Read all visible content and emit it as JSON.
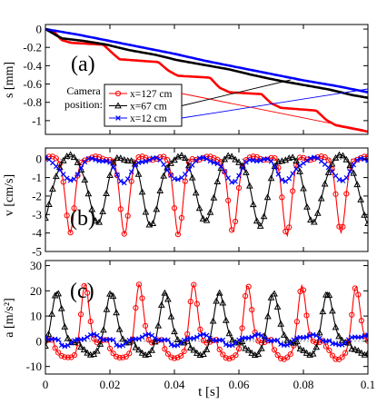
{
  "chart_data": [
    {
      "type": "line",
      "panel_label": "(a)",
      "xlabel": "",
      "ylabel": "s [mm]",
      "xlim": [
        0,
        0.1
      ],
      "ylim": [
        -1.15,
        0.05
      ],
      "x_ticks": [
        0,
        0.02,
        0.04,
        0.06,
        0.08,
        0.1
      ],
      "y_ticks": [
        0,
        -0.2,
        -0.4,
        -0.6,
        -0.8,
        -1
      ],
      "y_tick_labels": [
        "0",
        "-0.2",
        "-0.4",
        "-0.6",
        "-0.8",
        "-1"
      ],
      "legend_title": "Camera position:",
      "legend_title_lines": [
        "Camera",
        "position:"
      ],
      "series": [
        {
          "name": "x=127 cm",
          "color": "#ff0000",
          "marker": "circle",
          "x": [
            0,
            0.003,
            0.005,
            0.008,
            0.018,
            0.021,
            0.023,
            0.035,
            0.038,
            0.041,
            0.051,
            0.054,
            0.057,
            0.067,
            0.07,
            0.073,
            0.084,
            0.087,
            0.09,
            0.1
          ],
          "y": [
            0,
            -0.04,
            -0.12,
            -0.15,
            -0.17,
            -0.27,
            -0.33,
            -0.36,
            -0.45,
            -0.51,
            -0.53,
            -0.64,
            -0.69,
            -0.71,
            -0.81,
            -0.86,
            -0.89,
            -0.99,
            -1.05,
            -1.12
          ]
        },
        {
          "name": "x=67 cm",
          "color": "#000000",
          "marker": "triangle",
          "x": [
            0,
            0.002,
            0.005,
            0.012,
            0.019,
            0.026,
            0.034,
            0.041,
            0.049,
            0.057,
            0.064,
            0.072,
            0.08,
            0.088,
            0.095,
            0.1
          ],
          "y": [
            0,
            -0.04,
            -0.1,
            -0.13,
            -0.17,
            -0.23,
            -0.28,
            -0.34,
            -0.39,
            -0.44,
            -0.5,
            -0.56,
            -0.61,
            -0.66,
            -0.72,
            -0.75
          ]
        },
        {
          "name": "x=12 cm",
          "color": "#0000ff",
          "marker": "x",
          "x": [
            0,
            0.01,
            0.02,
            0.03,
            0.04,
            0.05,
            0.06,
            0.07,
            0.08,
            0.09,
            0.1
          ],
          "y": [
            0,
            -0.06,
            -0.13,
            -0.2,
            -0.27,
            -0.35,
            -0.42,
            -0.49,
            -0.56,
            -0.62,
            -0.69
          ]
        }
      ]
    },
    {
      "type": "line",
      "panel_label": "(b)",
      "xlabel": "",
      "ylabel": "v [cm/s]",
      "xlim": [
        0,
        0.1
      ],
      "ylim": [
        -5,
        0.6
      ],
      "x_ticks": [
        0,
        0.02,
        0.04,
        0.06,
        0.08,
        0.1
      ],
      "y_ticks": [
        0,
        -1,
        -2,
        -3,
        -4,
        -5
      ],
      "y_tick_labels": [
        "0",
        "-1",
        "-2",
        "-3",
        "-4",
        "-5"
      ],
      "series": [
        {
          "name": "x=127 cm",
          "color": "#ff0000",
          "marker": "circle",
          "period": 0.0168,
          "phase": 0.003,
          "peak_time": 0.0047,
          "min": -4.1,
          "base": 0.05,
          "ripple": 0.1,
          "sharp": true
        },
        {
          "name": "x=67 cm",
          "color": "#000000",
          "marker": "triangle",
          "period": 0.0168,
          "phase": 0.008,
          "peak_time": 0.008,
          "min": -3.6,
          "base": 0.1,
          "ripple": 0.15,
          "sharp": false
        },
        {
          "name": "x=12 cm",
          "color": "#0000ff",
          "marker": "x",
          "period": 0.0168,
          "phase": 0.0005,
          "peak_time": 0.007,
          "min": -1.2,
          "base": 0.0,
          "ripple": 0.1,
          "sharp": false
        }
      ]
    },
    {
      "type": "line",
      "panel_label": "(c)",
      "xlabel": "t [s]",
      "ylabel": "a [m/s²]",
      "xlim": [
        0,
        0.1
      ],
      "ylim": [
        -13,
        32
      ],
      "x_ticks": [
        0,
        0.02,
        0.04,
        0.06,
        0.08,
        0.1
      ],
      "x_tick_labels": [
        "0",
        "0.02",
        "0.04",
        "0.06",
        "0.08",
        "0.1"
      ],
      "y_ticks": [
        30,
        20,
        10,
        0,
        -10
      ],
      "y_tick_labels": [
        "30",
        "20",
        "10",
        "0",
        "-10"
      ],
      "series": [
        {
          "name": "x=127 cm",
          "color": "#ff0000",
          "marker": "circle",
          "period": 0.0168,
          "phase": 0.003,
          "peak": 24,
          "trough": -7,
          "width": 0.0012
        },
        {
          "name": "x=67 cm",
          "color": "#000000",
          "marker": "triangle",
          "period": 0.0168,
          "phase": 0.011,
          "peak": 22,
          "trough": -5,
          "width": 0.0016
        },
        {
          "name": "x=12 cm",
          "color": "#0000ff",
          "marker": "x",
          "period": 0.0168,
          "phase": 0.005,
          "peak": 4,
          "trough": -2,
          "width": 0.004
        }
      ]
    }
  ]
}
